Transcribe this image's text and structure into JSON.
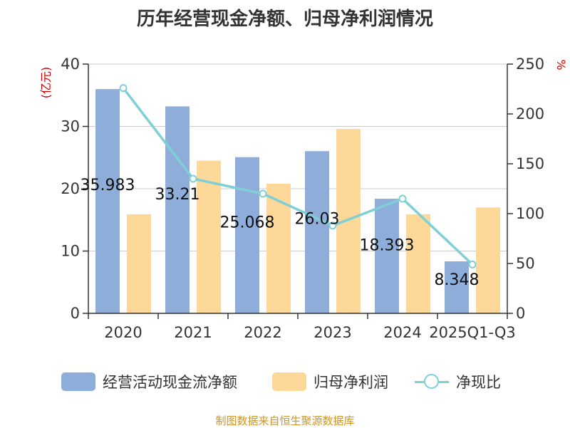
{
  "title": "历年经营现金净额、归母净利润情况",
  "source": "制图数据来自恒生聚源数据库",
  "colors": {
    "bar1": "#8eadd9",
    "bar2": "#fed898",
    "line": "#7fd0d6",
    "axis": "#333333",
    "grid": "#cccccc",
    "unit_left": "#cc0000",
    "unit_right": "#cc0000",
    "source": "#c8962a"
  },
  "chart_data": {
    "type": "bar",
    "categories": [
      "2020",
      "2021",
      "2022",
      "2023",
      "2024",
      "2025Q1-Q3"
    ],
    "y_left": {
      "unit": "(亿元)",
      "min": 0,
      "max": 40,
      "ticks": [
        0,
        10,
        20,
        30,
        40
      ]
    },
    "y_right": {
      "unit": "%",
      "min": 0,
      "max": 250,
      "ticks": [
        0,
        50,
        100,
        150,
        200,
        250
      ]
    },
    "grid": true,
    "legend_position": "bottom",
    "series": [
      {
        "name": "经营活动现金流净额",
        "type": "bar",
        "axis": "left",
        "values": [
          35.983,
          33.21,
          25.068,
          26.03,
          18.393,
          8.348
        ],
        "labels": [
          "35.983",
          "33.21",
          "25.068",
          "26.03",
          "18.393",
          "8.348"
        ]
      },
      {
        "name": "归母净利润",
        "type": "bar",
        "axis": "left",
        "values": [
          15.9,
          24.5,
          20.8,
          29.6,
          15.9,
          17.0
        ]
      },
      {
        "name": "净现比",
        "type": "line",
        "axis": "right",
        "values": [
          226,
          135,
          120,
          88,
          115,
          49
        ]
      }
    ]
  }
}
